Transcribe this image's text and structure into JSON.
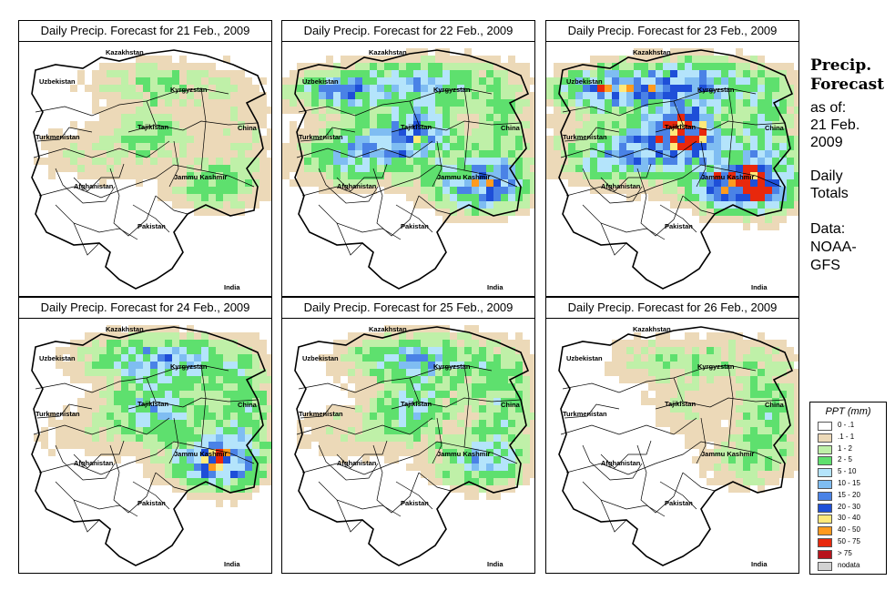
{
  "panels": [
    {
      "title": "Daily Precip. Forecast for  21 Feb., 2009",
      "intensity": 1
    },
    {
      "title": "Daily Precip. Forecast for  22 Feb., 2009",
      "intensity": 2
    },
    {
      "title": "Daily Precip. Forecast for  23 Feb., 2009",
      "intensity": 3
    },
    {
      "title": "Daily Precip. Forecast for  24 Feb., 2009",
      "intensity": 2
    },
    {
      "title": "Daily Precip. Forecast for  25 Feb., 2009",
      "intensity": 1
    },
    {
      "title": "Daily Precip. Forecast for  26 Feb., 2009",
      "intensity": 0
    }
  ],
  "map_labels": {
    "kazakhstan": "Kazakhstan",
    "uzbekistan": "Uzbekistan",
    "kyrgyzstan": "Kyrgyzstan",
    "tajikistan": "Tajikistan",
    "china": "China",
    "turkmenistan": "Turkmenistan",
    "afghanistan": "Afghanistan",
    "jammu_kashmir": "Jammu Kashmir",
    "pakistan": "Pakistan",
    "india": "India"
  },
  "sidebar": {
    "heading_line1": "Precip.",
    "heading_line2": "Forecast",
    "asof_line1": "as of:",
    "asof_line2": "21 Feb.",
    "asof_line3": "2009",
    "totals_line1": "Daily",
    "totals_line2": "Totals",
    "data_line1": "Data:",
    "data_line2": "NOAA-",
    "data_line3": "GFS"
  },
  "legend": {
    "title": "PPT (mm)",
    "items": [
      {
        "label": "0 - .1",
        "color": "#ffffff"
      },
      {
        "label": ".1 - 1",
        "color": "#ecd9b8"
      },
      {
        "label": "1 - 2",
        "color": "#bff0a8"
      },
      {
        "label": "2 - 5",
        "color": "#5ee06e"
      },
      {
        "label": "5 - 10",
        "color": "#b4e4fb"
      },
      {
        "label": "10 - 15",
        "color": "#7fbdf2"
      },
      {
        "label": "15 - 20",
        "color": "#4a82e6"
      },
      {
        "label": "20 - 30",
        "color": "#1e4fd8"
      },
      {
        "label": "30 - 40",
        "color": "#ffe97a"
      },
      {
        "label": "40 - 50",
        "color": "#ff9a1e"
      },
      {
        "label": "50 - 75",
        "color": "#e8280c"
      },
      {
        "label": "> 75",
        "color": "#b8141c"
      },
      {
        "label": "nodata",
        "color": "#d2d2d2"
      }
    ]
  }
}
